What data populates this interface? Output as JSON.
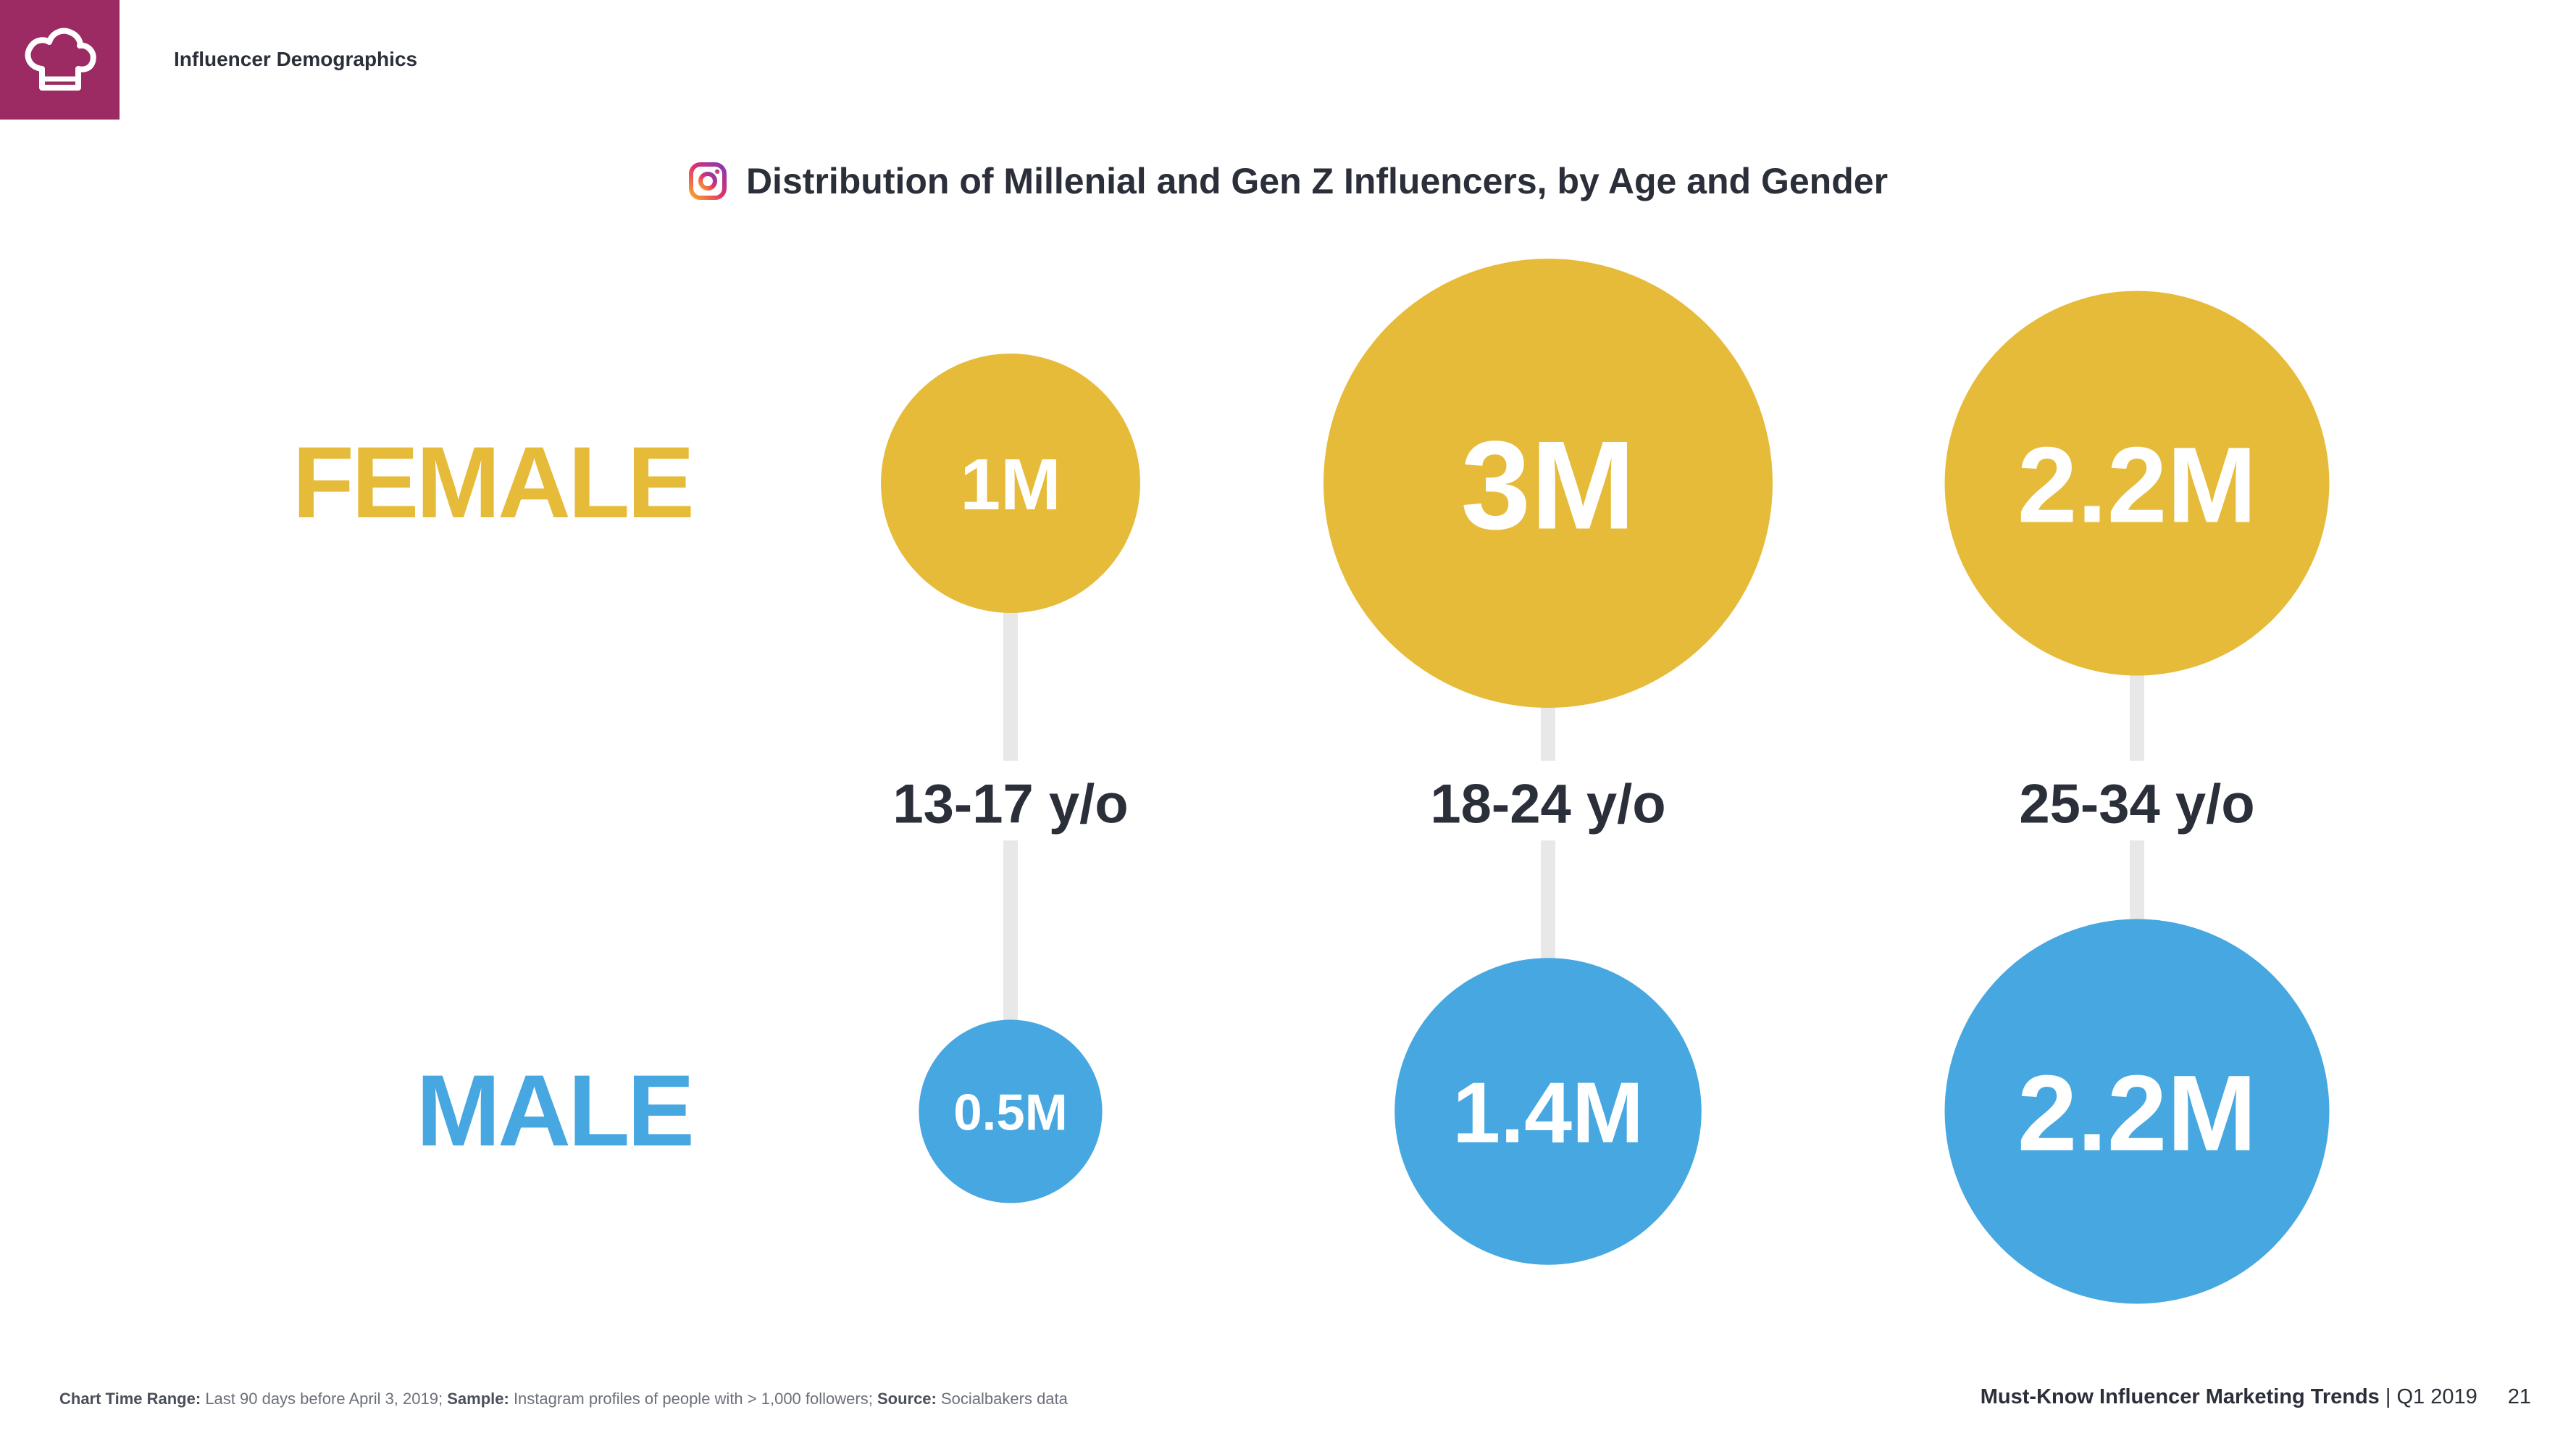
{
  "header": {
    "section_title": "Influencer Demographics",
    "brand_color": "#9c2a63",
    "logo_icon": "chef-hat-icon"
  },
  "chart_title": "Distribution of Millenial and Gen Z Influencers, by Age and Gender",
  "chart_title_icon": "instagram-icon",
  "chart_data": {
    "type": "bubble",
    "title": "Distribution of Millenial and Gen Z Influencers, by Age and Gender",
    "categories": [
      "13-17 y/o",
      "18-24 y/o",
      "25-34 y/o"
    ],
    "series": [
      {
        "name": "FEMALE",
        "color": "#e6bb3a",
        "values": [
          1.0,
          3.0,
          2.2
        ],
        "labels": [
          "1M",
          "3M",
          "2.2M"
        ]
      },
      {
        "name": "MALE",
        "color": "#47a7e0",
        "values": [
          0.5,
          1.4,
          2.2
        ],
        "labels": [
          "0.5M",
          "1.4M",
          "2.2M"
        ]
      }
    ],
    "units": "millions of influencers",
    "connector_color": "#e8e8e8",
    "label_color": "#2b2f3a"
  },
  "footer": {
    "time_range_label": "Chart Time Range:",
    "time_range_value": "Last 90 days before April 3, 2019;",
    "sample_label": "Sample:",
    "sample_value": "Instagram profiles of people with > 1,000 followers;",
    "source_label": "Source:",
    "source_value": "Socialbakers data",
    "report_title": "Must-Know Influencer Marketing Trends",
    "report_period": "| Q1 2019",
    "page_number": "21"
  }
}
